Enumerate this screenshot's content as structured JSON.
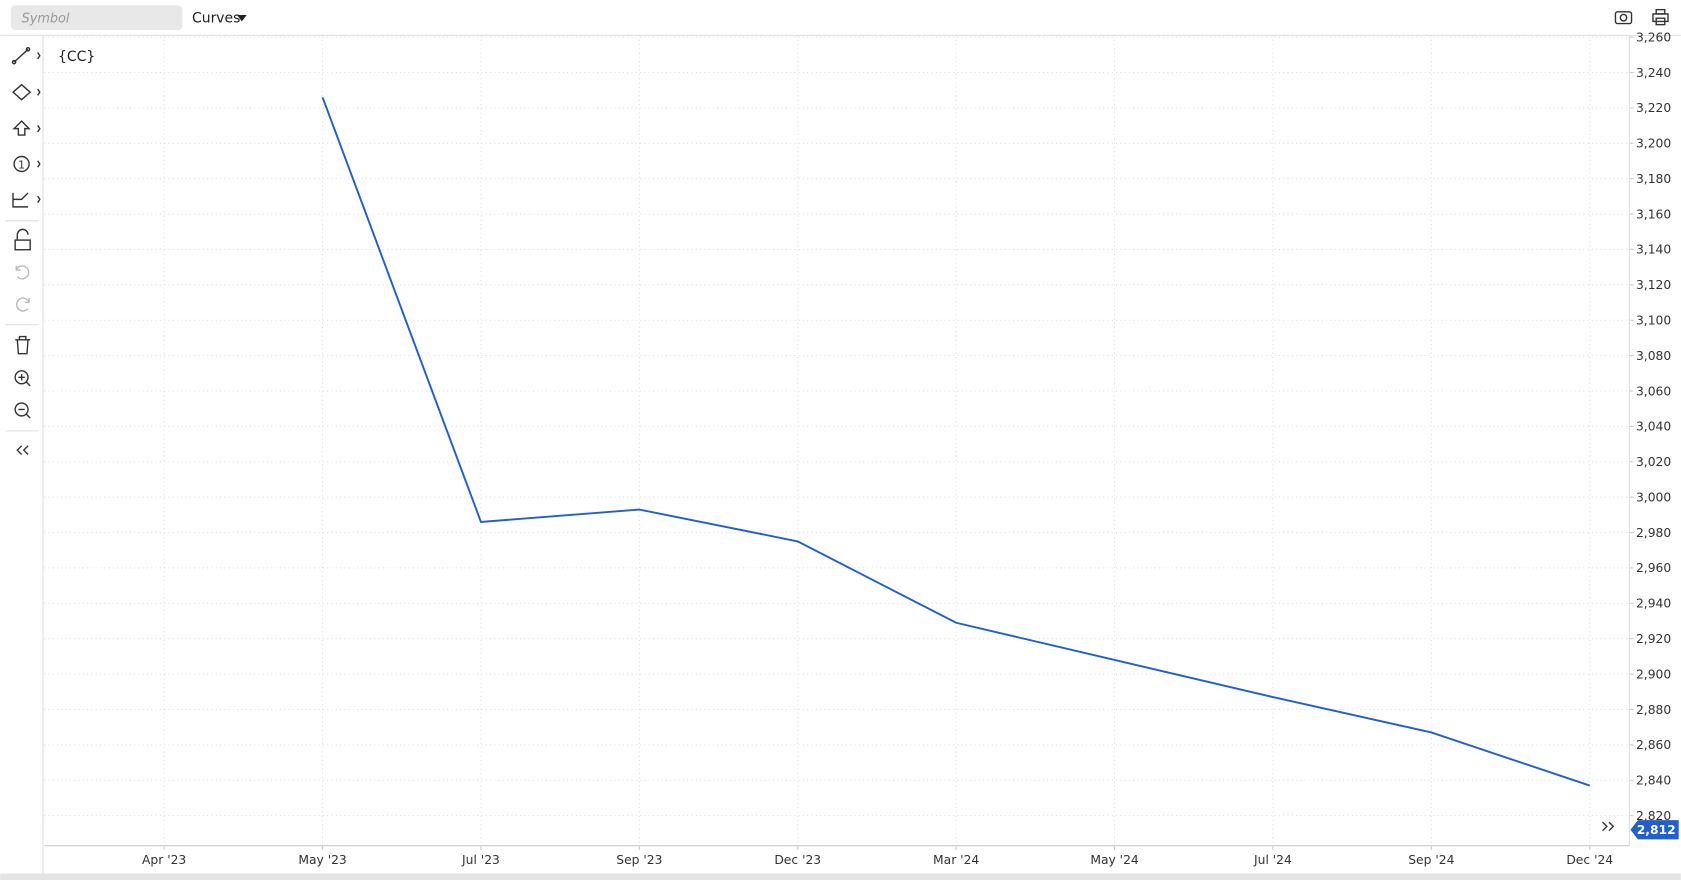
{
  "ui": {
    "symbol_placeholder": "Symbol",
    "menu": "Curves"
  },
  "chart_data": {
    "type": "line",
    "title": "{CC}",
    "categories": [
      "Apr '23",
      "May '23",
      "Jul '23",
      "Sep '23",
      "Dec '23",
      "Mar '24",
      "May '24",
      "Jul '24",
      "Sep '24",
      "Dec '24"
    ],
    "values": [
      null,
      3226,
      2986,
      2993,
      2975,
      2929,
      2908,
      2887,
      2867,
      2837
    ],
    "color": "#1f5fd1",
    "ylim": [
      2803,
      3261
    ],
    "yticks": [
      {
        "value": 2820,
        "label": "2,820"
      },
      {
        "value": 2840,
        "label": "2,840"
      },
      {
        "value": 2860,
        "label": "2,860"
      },
      {
        "value": 2880,
        "label": "2,880"
      },
      {
        "value": 2900,
        "label": "2,900"
      },
      {
        "value": 2920,
        "label": "2,920"
      },
      {
        "value": 2940,
        "label": "2,940"
      },
      {
        "value": 2960,
        "label": "2,960"
      },
      {
        "value": 2980,
        "label": "2,980"
      },
      {
        "value": 3000,
        "label": "3,000"
      },
      {
        "value": 3020,
        "label": "3,020"
      },
      {
        "value": 3040,
        "label": "3,040"
      },
      {
        "value": 3060,
        "label": "3,060"
      },
      {
        "value": 3080,
        "label": "3,080"
      },
      {
        "value": 3100,
        "label": "3,100"
      },
      {
        "value": 3120,
        "label": "3,120"
      },
      {
        "value": 3140,
        "label": "3,140"
      },
      {
        "value": 3160,
        "label": "3,160"
      },
      {
        "value": 3180,
        "label": "3,180"
      },
      {
        "value": 3200,
        "label": "3,200"
      },
      {
        "value": 3220,
        "label": "3,220"
      },
      {
        "value": 3240,
        "label": "3,240"
      },
      {
        "value": 3260,
        "label": "3,260"
      }
    ],
    "grid": true,
    "last_price": {
      "value": 2812,
      "label": "2,812"
    }
  }
}
